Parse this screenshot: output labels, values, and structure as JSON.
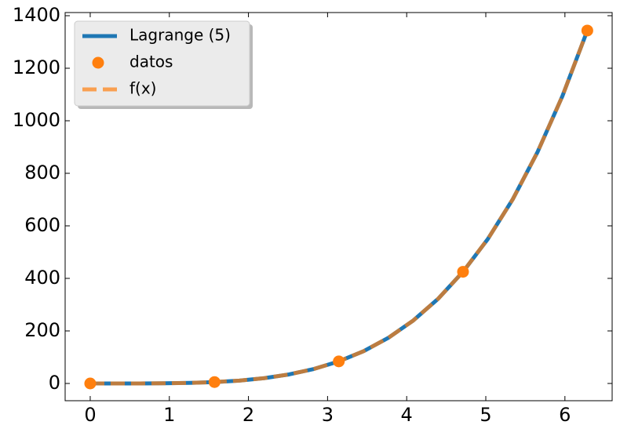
{
  "chart_data": {
    "type": "line",
    "series": [
      {
        "name": "Lagrange (5)",
        "color": "#1f77b4",
        "style": "solid",
        "x": [
          0,
          0.314,
          0.628,
          0.942,
          1.257,
          1.571,
          1.885,
          2.199,
          2.513,
          2.827,
          3.142,
          3.456,
          3.77,
          4.084,
          4.398,
          4.712,
          5.027,
          5.341,
          5.655,
          5.969,
          6.283
        ],
        "values": [
          0,
          0.008,
          0.13,
          0.68,
          2.15,
          5.25,
          10.9,
          20.2,
          34.4,
          55.1,
          84.0,
          122.9,
          174.1,
          239.8,
          322.5,
          425.1,
          550.5,
          701.3,
          881.6,
          1094.4,
          1343.4
        ]
      },
      {
        "name": "datos",
        "color": "#ff7f0e",
        "style": "marker",
        "x": [
          0,
          1.571,
          3.142,
          4.712,
          6.283
        ],
        "values": [
          0,
          5.25,
          84.0,
          425.1,
          1343.4
        ]
      },
      {
        "name": "f(x)",
        "color": "#ff7f0e",
        "style": "dashed",
        "x": [
          0,
          0.314,
          0.628,
          0.942,
          1.257,
          1.571,
          1.885,
          2.199,
          2.513,
          2.827,
          3.142,
          3.456,
          3.77,
          4.084,
          4.398,
          4.712,
          5.027,
          5.341,
          5.655,
          5.969,
          6.283
        ],
        "values": [
          0,
          0.008,
          0.13,
          0.68,
          2.15,
          5.25,
          10.9,
          20.2,
          34.4,
          55.1,
          84.0,
          122.9,
          174.1,
          239.8,
          322.5,
          425.1,
          550.5,
          701.3,
          881.6,
          1094.4,
          1343.4
        ]
      }
    ],
    "xlim": [
      -0.317,
      6.597
    ],
    "xticks": [
      0,
      1,
      2,
      3,
      4,
      5,
      6
    ],
    "ylim": [
      -65.7,
      1412
    ],
    "yticks": [
      0,
      200,
      400,
      600,
      800,
      1000,
      1200,
      1400
    ],
    "legend": "upper left",
    "grid": false
  }
}
